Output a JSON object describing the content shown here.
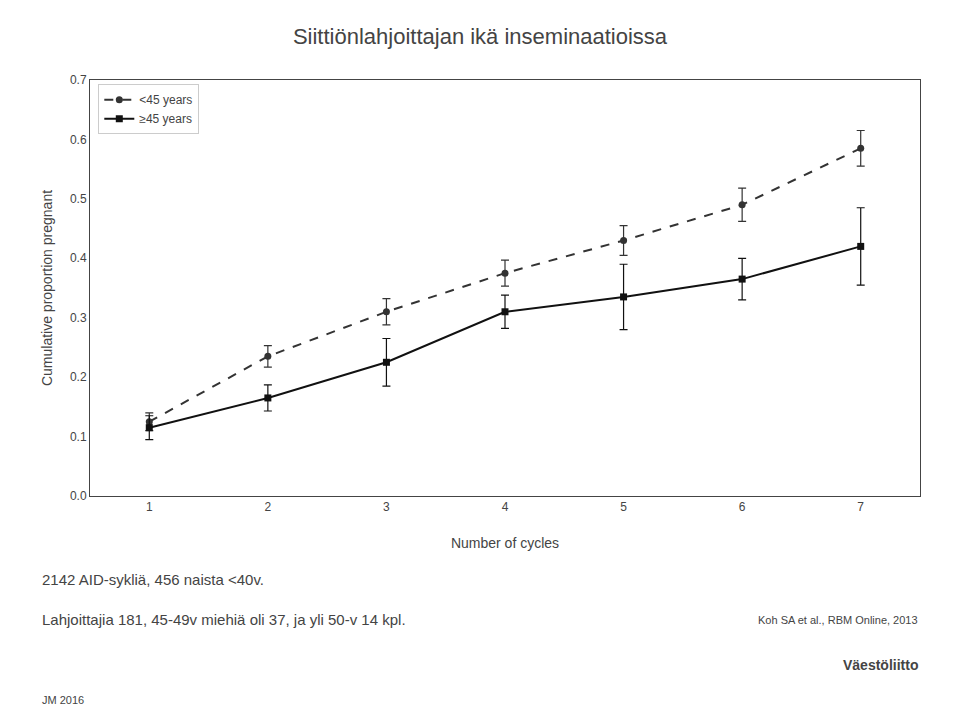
{
  "chart_data": {
    "type": "line",
    "title": "Siittiönlahjoittajan ikä inseminaatioissa",
    "x_label": "Number of cycles",
    "y_label": "Cumulative proportion pregnant",
    "x": [
      1,
      2,
      3,
      4,
      5,
      6,
      7
    ],
    "series": [
      {
        "name": "<45 years",
        "color": "#333333",
        "line_style": "dashed",
        "marker": "circle",
        "values": [
          0.125,
          0.235,
          0.31,
          0.375,
          0.43,
          0.49,
          0.585
        ],
        "errors": [
          0.015,
          0.018,
          0.022,
          0.022,
          0.025,
          0.028,
          0.03
        ]
      },
      {
        "name": "≥45 years",
        "color": "#111111",
        "line_style": "solid",
        "marker": "square",
        "values": [
          0.115,
          0.165,
          0.225,
          0.31,
          0.335,
          0.365,
          0.42
        ],
        "errors": [
          0.02,
          0.022,
          0.04,
          0.028,
          0.055,
          0.035,
          0.065
        ]
      }
    ],
    "xlim": [
      0.5,
      7.5
    ],
    "ylim": [
      0.0,
      0.7
    ],
    "xticks": [
      1,
      2,
      3,
      4,
      5,
      6,
      7
    ],
    "yticks": [
      {
        "value": 0.0,
        "label": "0.0"
      },
      0.1,
      0.2,
      0.3,
      0.4,
      0.5,
      0.6,
      0.7
    ],
    "legend": "upper left",
    "grid": false,
    "annotations": [
      "2142 AID-sykliä, 456 naista <40v.",
      "Lahjoittajia 181, 45-49v miehiä oli 37, ja yli 50-v 14 kpl.",
      "Koh SA et al., RBM Online, 2013",
      "Väestöliitto",
      "JM 2016"
    ]
  }
}
